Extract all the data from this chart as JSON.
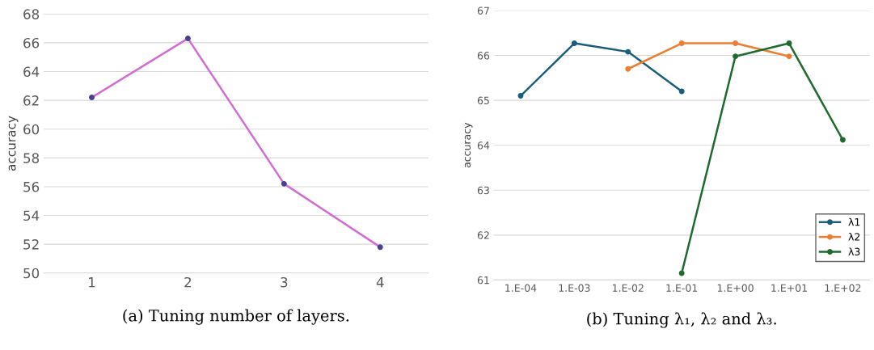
{
  "chart_data": [
    {
      "type": "line",
      "title": "(a) Tuning number of layers.",
      "ylabel": "accuracy",
      "categories": [
        "1",
        "2",
        "3",
        "4"
      ],
      "series": [
        {
          "color": "#d46bd4",
          "values": [
            62.2,
            66.3,
            56.2,
            51.8
          ]
        }
      ],
      "ylim": [
        50,
        68
      ],
      "yticks": [
        50,
        52,
        54,
        56,
        58,
        60,
        62,
        64,
        66,
        68
      ],
      "grid": "y",
      "marker": "circle",
      "legend": false
    },
    {
      "type": "line",
      "title": "(b) Tuning λ₁, λ₂ and λ₃.",
      "ylabel": "accuracy",
      "categories": [
        "1.E-04",
        "1.E-03",
        "1.E-02",
        "1.E-01",
        "1.E+00",
        "1.E+01",
        "1.E+02"
      ],
      "series": [
        {
          "name": "λ1",
          "color": "#1b5e7b",
          "values": [
            65.1,
            66.27,
            66.08,
            65.2,
            null,
            null,
            null
          ]
        },
        {
          "name": "λ2",
          "color": "#ed7d31",
          "values": [
            null,
            null,
            65.7,
            66.27,
            66.27,
            65.98,
            null
          ]
        },
        {
          "name": "λ3",
          "color": "#1e6b2e",
          "values": [
            null,
            null,
            null,
            61.15,
            65.98,
            66.27,
            64.12
          ]
        }
      ],
      "ylim": [
        61,
        67
      ],
      "yticks": [
        61,
        62,
        63,
        64,
        65,
        66,
        67
      ],
      "grid": "y",
      "marker": "circle",
      "legend": "bottom right"
    }
  ]
}
